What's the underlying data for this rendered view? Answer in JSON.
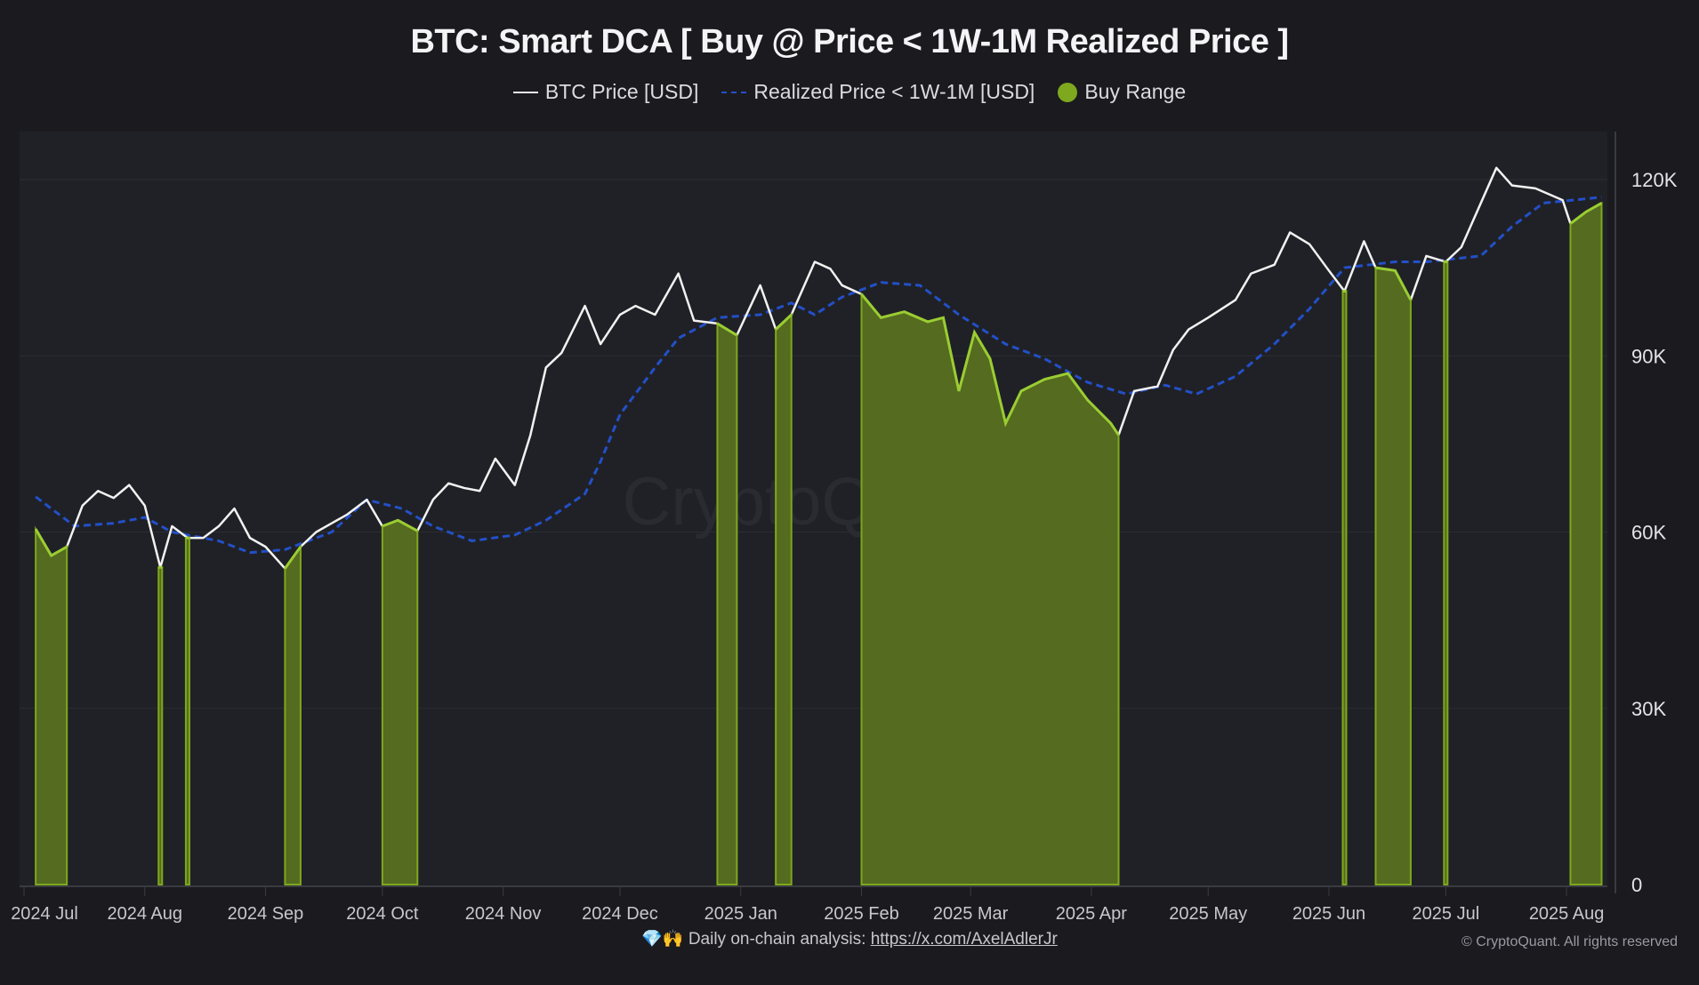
{
  "chart_data": {
    "type": "line",
    "title": "BTC: Smart DCA [ Buy @ Price < 1W-1M Realized Price ]",
    "legend": {
      "placement": "top-center",
      "entries": [
        "BTC Price [USD]",
        "Realized Price < 1W-1M [USD]",
        "Buy Range"
      ]
    },
    "xlabel": "",
    "ylabel": "",
    "ylim": [
      0,
      127000
    ],
    "y_ticks": [
      0,
      30000,
      60000,
      90000,
      120000
    ],
    "y_tick_labels": [
      "0",
      "30K",
      "60K",
      "90K",
      "120K"
    ],
    "x_tick_dates": [
      "2024-07-01",
      "2024-08-01",
      "2024-09-01",
      "2024-10-01",
      "2024-11-01",
      "2024-12-01",
      "2025-01-01",
      "2025-02-01",
      "2025-03-01",
      "2025-04-01",
      "2025-05-01",
      "2025-06-01",
      "2025-07-01",
      "2025-08-01"
    ],
    "x_tick_labels": [
      "2024 Jul",
      "2024 Aug",
      "2024 Sep",
      "2024 Oct",
      "2024 Nov",
      "2024 Dec",
      "2025 Jan",
      "2025 Feb",
      "2025 Mar",
      "2025 Apr",
      "2025 May",
      "2025 Jun",
      "2025 Jul",
      "2025 Aug"
    ],
    "grid": true,
    "y_axis_side": "right",
    "colors": {
      "price": "#f2f2f2",
      "realized": "#2350c8",
      "buy_fill": "#556b1f",
      "buy_line": "#9acd32",
      "background": "#1a1a1f",
      "plot_background": "#202126"
    },
    "series": [
      {
        "name": "BTC Price [USD]",
        "points": [
          [
            "2024-07-04",
            60500
          ],
          [
            "2024-07-08",
            56000
          ],
          [
            "2024-07-12",
            57500
          ],
          [
            "2024-07-16",
            64500
          ],
          [
            "2024-07-20",
            67000
          ],
          [
            "2024-07-24",
            65800
          ],
          [
            "2024-07-28",
            68000
          ],
          [
            "2024-08-01",
            64500
          ],
          [
            "2024-08-05",
            54000
          ],
          [
            "2024-08-08",
            61000
          ],
          [
            "2024-08-12",
            59000
          ],
          [
            "2024-08-16",
            59000
          ],
          [
            "2024-08-20",
            61000
          ],
          [
            "2024-08-24",
            64000
          ],
          [
            "2024-08-28",
            59000
          ],
          [
            "2024-09-01",
            57500
          ],
          [
            "2024-09-06",
            53800
          ],
          [
            "2024-09-10",
            57500
          ],
          [
            "2024-09-14",
            60000
          ],
          [
            "2024-09-18",
            61500
          ],
          [
            "2024-09-22",
            63000
          ],
          [
            "2024-09-27",
            65500
          ],
          [
            "2024-10-01",
            61000
          ],
          [
            "2024-10-05",
            62000
          ],
          [
            "2024-10-10",
            60200
          ],
          [
            "2024-10-14",
            65500
          ],
          [
            "2024-10-18",
            68300
          ],
          [
            "2024-10-22",
            67500
          ],
          [
            "2024-10-26",
            67000
          ],
          [
            "2024-10-30",
            72500
          ],
          [
            "2024-11-04",
            68000
          ],
          [
            "2024-11-08",
            76500
          ],
          [
            "2024-11-12",
            88000
          ],
          [
            "2024-11-16",
            90500
          ],
          [
            "2024-11-22",
            98500
          ],
          [
            "2024-11-26",
            92000
          ],
          [
            "2024-12-01",
            97000
          ],
          [
            "2024-12-05",
            98500
          ],
          [
            "2024-12-10",
            97000
          ],
          [
            "2024-12-16",
            104000
          ],
          [
            "2024-12-20",
            96000
          ],
          [
            "2024-12-26",
            95500
          ],
          [
            "2024-12-31",
            93500
          ],
          [
            "2025-01-06",
            102000
          ],
          [
            "2025-01-10",
            94500
          ],
          [
            "2025-01-14",
            97000
          ],
          [
            "2025-01-20",
            106000
          ],
          [
            "2025-01-24",
            104800
          ],
          [
            "2025-01-27",
            102000
          ],
          [
            "2025-02-01",
            100500
          ],
          [
            "2025-02-06",
            96500
          ],
          [
            "2025-02-12",
            97500
          ],
          [
            "2025-02-18",
            95800
          ],
          [
            "2025-02-22",
            96500
          ],
          [
            "2025-02-26",
            84000
          ],
          [
            "2025-03-02",
            94000
          ],
          [
            "2025-03-06",
            89500
          ],
          [
            "2025-03-10",
            78500
          ],
          [
            "2025-03-14",
            84000
          ],
          [
            "2025-03-20",
            86000
          ],
          [
            "2025-03-26",
            87000
          ],
          [
            "2025-03-31",
            82500
          ],
          [
            "2025-04-06",
            78500
          ],
          [
            "2025-04-08",
            76500
          ],
          [
            "2025-04-12",
            84000
          ],
          [
            "2025-04-18",
            84800
          ],
          [
            "2025-04-22",
            91000
          ],
          [
            "2025-04-26",
            94500
          ],
          [
            "2025-05-01",
            96500
          ],
          [
            "2025-05-08",
            99500
          ],
          [
            "2025-05-12",
            104000
          ],
          [
            "2025-05-18",
            105500
          ],
          [
            "2025-05-22",
            111000
          ],
          [
            "2025-05-27",
            109000
          ],
          [
            "2025-06-01",
            104500
          ],
          [
            "2025-06-05",
            101000
          ],
          [
            "2025-06-10",
            109500
          ],
          [
            "2025-06-13",
            105000
          ],
          [
            "2025-06-18",
            104500
          ],
          [
            "2025-06-22",
            99500
          ],
          [
            "2025-06-26",
            107000
          ],
          [
            "2025-07-01",
            106000
          ],
          [
            "2025-07-05",
            108500
          ],
          [
            "2025-07-10",
            116000
          ],
          [
            "2025-07-14",
            122000
          ],
          [
            "2025-07-18",
            119000
          ],
          [
            "2025-07-24",
            118500
          ],
          [
            "2025-07-31",
            116500
          ],
          [
            "2025-08-02",
            112500
          ],
          [
            "2025-08-06",
            114500
          ],
          [
            "2025-08-10",
            116000
          ]
        ]
      },
      {
        "name": "Realized Price < 1W-1M [USD]",
        "points": [
          [
            "2024-07-04",
            66000
          ],
          [
            "2024-07-14",
            61000
          ],
          [
            "2024-07-24",
            61500
          ],
          [
            "2024-08-01",
            62500
          ],
          [
            "2024-08-08",
            60000
          ],
          [
            "2024-08-20",
            58500
          ],
          [
            "2024-08-28",
            56500
          ],
          [
            "2024-09-06",
            57000
          ],
          [
            "2024-09-18",
            60000
          ],
          [
            "2024-09-27",
            65500
          ],
          [
            "2024-10-06",
            64000
          ],
          [
            "2024-10-14",
            61000
          ],
          [
            "2024-10-24",
            58500
          ],
          [
            "2024-11-04",
            59500
          ],
          [
            "2024-11-12",
            62000
          ],
          [
            "2024-11-22",
            66500
          ],
          [
            "2024-11-26",
            72000
          ],
          [
            "2024-12-01",
            80000
          ],
          [
            "2024-12-10",
            88000
          ],
          [
            "2024-12-16",
            93000
          ],
          [
            "2024-12-26",
            96500
          ],
          [
            "2025-01-06",
            97000
          ],
          [
            "2025-01-14",
            99000
          ],
          [
            "2025-01-20",
            97000
          ],
          [
            "2025-01-27",
            100000
          ],
          [
            "2025-02-06",
            102500
          ],
          [
            "2025-02-16",
            102000
          ],
          [
            "2025-02-26",
            97000
          ],
          [
            "2025-03-10",
            92000
          ],
          [
            "2025-03-20",
            89500
          ],
          [
            "2025-03-31",
            85500
          ],
          [
            "2025-04-10",
            83500
          ],
          [
            "2025-04-20",
            85000
          ],
          [
            "2025-04-28",
            83500
          ],
          [
            "2025-05-08",
            86500
          ],
          [
            "2025-05-18",
            92000
          ],
          [
            "2025-05-27",
            98000
          ],
          [
            "2025-06-05",
            105000
          ],
          [
            "2025-06-18",
            106000
          ],
          [
            "2025-06-26",
            106000
          ],
          [
            "2025-07-10",
            107000
          ],
          [
            "2025-07-18",
            112000
          ],
          [
            "2025-07-26",
            116000
          ],
          [
            "2025-08-10",
            117000
          ]
        ]
      }
    ],
    "buy_range_rule": "Price < 1W-1M Realized Price"
  },
  "watermark": "CryptoQuant",
  "footer": {
    "prefix": "Daily on-chain analysis: ",
    "link": "https://x.com/AxelAdlerJr",
    "icons": [
      "gem-icon",
      "raised-hands-icon"
    ]
  },
  "copyright": "© CryptoQuant. All rights reserved"
}
